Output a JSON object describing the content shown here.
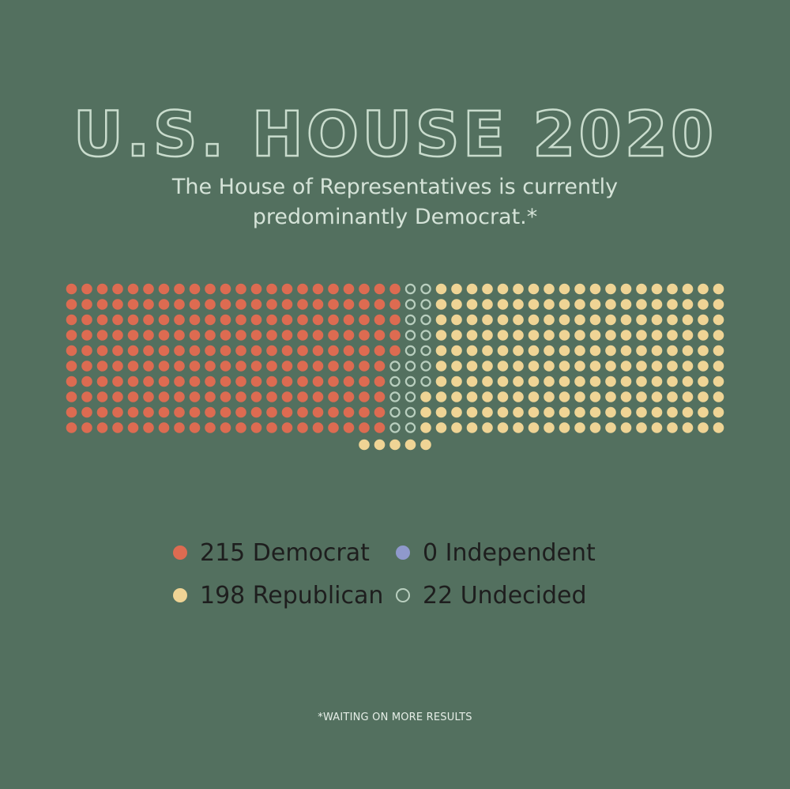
{
  "title": "U.S. HOUSE 2020",
  "subtitle": "The House of Representatives is currently predominantly Democrat.*",
  "footnote": "*WAITING ON MORE RESULTS",
  "colors": {
    "background": "#53705f",
    "democrat": "#dd6b51",
    "republican": "#efd495",
    "independent": "#8f99cc",
    "undecided": "#b9cfbf"
  },
  "chart_data": {
    "type": "waffle",
    "title": "U.S. HOUSE 2020",
    "subtitle": "The House of Representatives is currently predominantly Democrat.*",
    "categories": [
      "Democrat",
      "Independent",
      "Republican",
      "Undecided"
    ],
    "values": [
      215,
      0,
      198,
      22
    ],
    "total": 435,
    "legend": [
      {
        "label": "215 Democrat",
        "category": "Democrat",
        "value": 215,
        "color": "#dd6b51",
        "style": "filled"
      },
      {
        "label": "0 Independent",
        "category": "Independent",
        "value": 0,
        "color": "#8f99cc",
        "style": "filled"
      },
      {
        "label": "198 Republican",
        "category": "Republican",
        "value": 198,
        "color": "#efd495",
        "style": "filled"
      },
      {
        "label": "22 Undecided",
        "category": "Undecided",
        "value": 22,
        "color": "#b9cfbf",
        "style": "outline"
      }
    ]
  }
}
